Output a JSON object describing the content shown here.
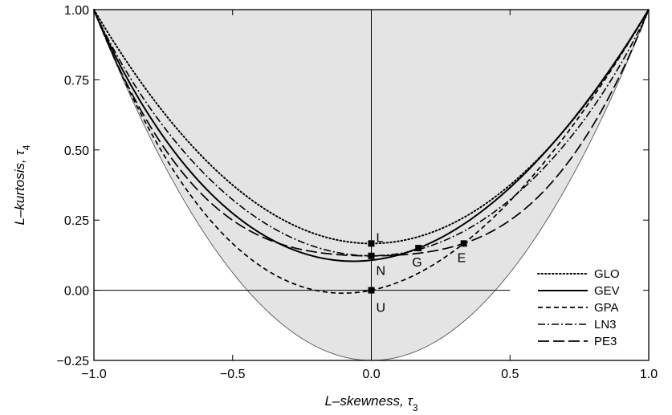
{
  "chart_data": {
    "type": "line",
    "xlabel": "L–skewness, τ",
    "xlabel_subscript": "3",
    "ylabel": "L–kurtosis, τ",
    "ylabel_subscript": "4",
    "xlim": [
      -1.0,
      1.0
    ],
    "ylim": [
      -0.25,
      1.0
    ],
    "x_ticks": [
      -1.0,
      -0.5,
      0.0,
      0.5,
      1.0
    ],
    "x_tick_labels": [
      "−1.0",
      "−0.5",
      "0.0",
      "0.5",
      "1.0"
    ],
    "y_ticks": [
      -0.25,
      0.0,
      0.25,
      0.5,
      0.75,
      1.0
    ],
    "y_tick_labels": [
      "−0.25",
      "0.00",
      "0.25",
      "0.50",
      "0.75",
      "1.00"
    ],
    "grid": false,
    "legend_position": "bottom-right",
    "bound": {
      "description": "lower bound tau4 = (5*tau3^2 - 1)/4, feasible region shaded",
      "fill": "#e4e4e4"
    },
    "reference_lines": {
      "x": 0.0,
      "y": 0.0,
      "y_line_x_range": [
        -1.0,
        0.5
      ]
    },
    "series": [
      {
        "name": "GLO",
        "style": "dotted",
        "formula": "(1 + 5*t^2)/6"
      },
      {
        "name": "GEV",
        "style": "solid",
        "formula": "0.10701 + 0.11090t + 0.84838t^2 - 0.06669t^3 + 0.00567t^4 - 0.04208t^5 + 0.03763t^6"
      },
      {
        "name": "GPA",
        "style": "dashed",
        "formula": "0.20196t + 0.95924t^2 - 0.20096t^3 + 0.04061t^4"
      },
      {
        "name": "LN3",
        "style": "dashdot",
        "formula": "0.12282 + 0.77518t^2 + 0.12279t^4 - 0.13638t^6 + 0.11368t^8"
      },
      {
        "name": "PE3",
        "style": "longdash",
        "formula": "0.12240 + 0.30115t^2 + 0.95812t^4 - 0.57488t^6 + 0.19383t^8"
      }
    ],
    "points": [
      {
        "label": "L",
        "x": 0.0,
        "y": 0.1667
      },
      {
        "label": "N",
        "x": 0.0,
        "y": 0.1226
      },
      {
        "label": "U",
        "x": 0.0,
        "y": 0.0
      },
      {
        "label": "G",
        "x": 0.1699,
        "y": 0.1504
      },
      {
        "label": "E",
        "x": 0.3333,
        "y": 0.1667
      }
    ]
  }
}
